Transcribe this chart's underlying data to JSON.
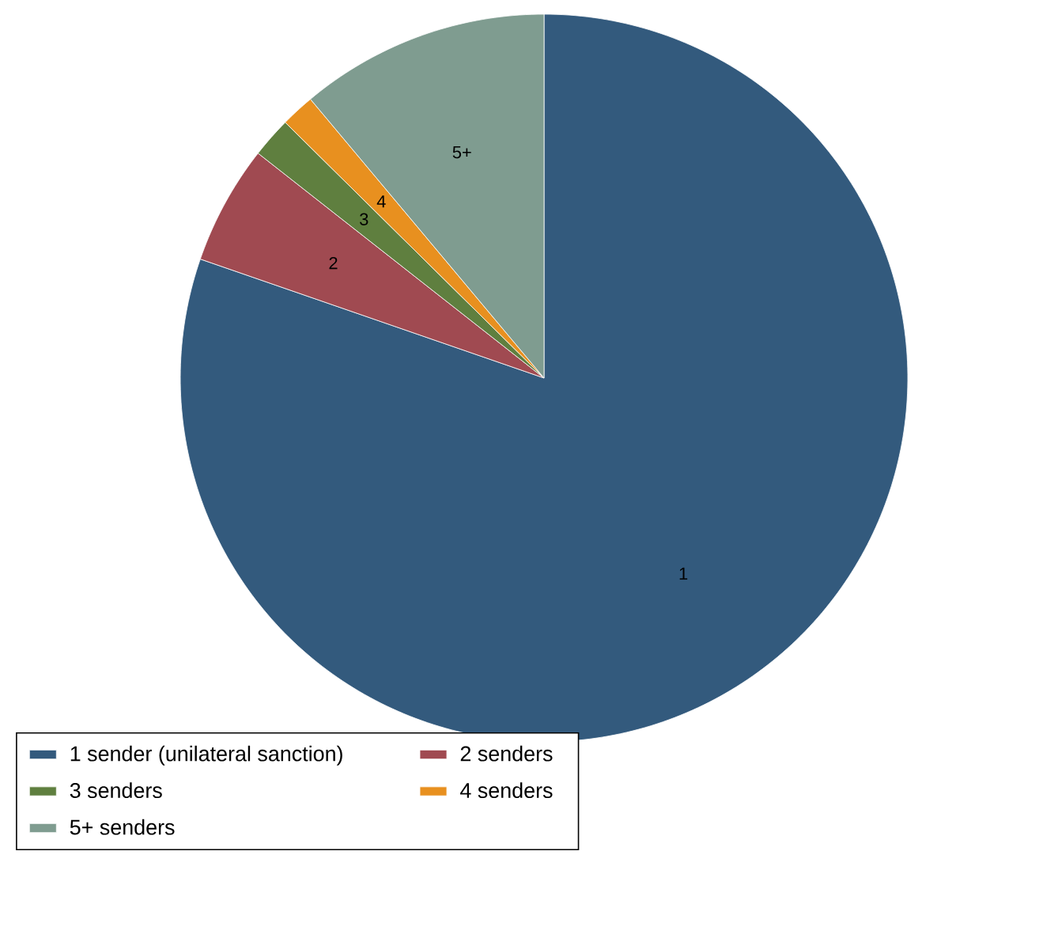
{
  "chart_data": {
    "type": "pie",
    "categories": [
      "1 sender (unilateral sanction)",
      "2 senders",
      "3 senders",
      "4 senders",
      "5+ senders"
    ],
    "values": [
      80.3,
      5.3,
      1.8,
      1.5,
      11.1
    ],
    "colors": [
      "#335a7d",
      "#a04a51",
      "#5f7f3f",
      "#e8901f",
      "#7f9c90"
    ],
    "annotations": [
      "1",
      "2",
      "3",
      "4",
      "5+"
    ],
    "legend": "bottom"
  }
}
